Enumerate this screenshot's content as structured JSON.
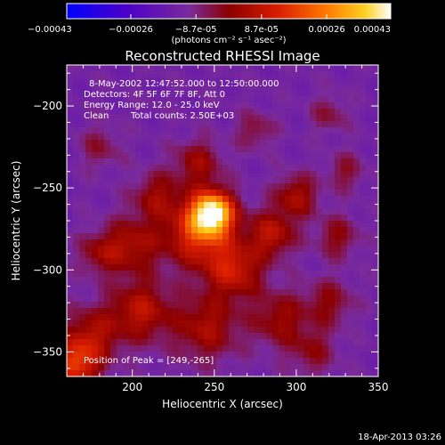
{
  "chart_data": {
    "type": "heatmap",
    "title": "Reconstructed RHESSI Image",
    "xlabel": "Heliocentric X (arcsec)",
    "ylabel": "Heliocentric Y (arcsec)",
    "xlim": [
      160,
      350
    ],
    "ylim": [
      -365,
      -175
    ],
    "xticks": [
      200,
      250,
      300,
      350
    ],
    "yticks": [
      -200,
      -250,
      -300,
      -350
    ],
    "colorbar": {
      "min": -0.00043,
      "max": 0.00043,
      "tick_values": [
        -0.00043,
        -0.00026,
        -8.7e-05,
        8.7e-05,
        0.00026,
        0.00043
      ],
      "tick_labels": [
        "-0.00043",
        "-0.00026",
        "-8.7e-05",
        "8.7e-05",
        "0.00026",
        "0.00043"
      ],
      "units_label": "(photons cm⁻² s⁻¹ asec⁻²)"
    },
    "annotations": {
      "time": "8-May-2002 12:47:52.000 to 12:50:00.000",
      "detectors": "Detectors: 4F 5F 6F 7F 8F, Att 0",
      "energy": "Energy Range: 12.0 - 25.0 keV",
      "clean": "Clean",
      "counts": "Total counts: 2.50E+03",
      "peak": "Position of Peak = [249,-265]"
    },
    "peak": [
      249,
      -265
    ],
    "sources": [
      {
        "x": 249,
        "y": -265,
        "amp": 1.0,
        "sigma": 9
      },
      {
        "x": 240,
        "y": -278,
        "amp": 0.55,
        "sigma": 14
      },
      {
        "x": 262,
        "y": -300,
        "amp": 0.45,
        "sigma": 12
      },
      {
        "x": 285,
        "y": -278,
        "amp": 0.4,
        "sigma": 10
      },
      {
        "x": 300,
        "y": -255,
        "amp": 0.35,
        "sigma": 9
      },
      {
        "x": 240,
        "y": -235,
        "amp": 0.3,
        "sigma": 10
      },
      {
        "x": 215,
        "y": -255,
        "amp": 0.3,
        "sigma": 10
      },
      {
        "x": 200,
        "y": -285,
        "amp": 0.35,
        "sigma": 12
      },
      {
        "x": 205,
        "y": -325,
        "amp": 0.4,
        "sigma": 13
      },
      {
        "x": 175,
        "y": -340,
        "amp": 0.35,
        "sigma": 12
      },
      {
        "x": 165,
        "y": -358,
        "amp": 0.55,
        "sigma": 10
      },
      {
        "x": 245,
        "y": -335,
        "amp": 0.35,
        "sigma": 14
      },
      {
        "x": 290,
        "y": -330,
        "amp": 0.3,
        "sigma": 12
      },
      {
        "x": 320,
        "y": -320,
        "amp": 0.25,
        "sigma": 10
      },
      {
        "x": 325,
        "y": -280,
        "amp": 0.25,
        "sigma": 9
      },
      {
        "x": 330,
        "y": -240,
        "amp": 0.2,
        "sigma": 8
      },
      {
        "x": 320,
        "y": -205,
        "amp": 0.18,
        "sigma": 8
      },
      {
        "x": 275,
        "y": -215,
        "amp": 0.2,
        "sigma": 8
      },
      {
        "x": 180,
        "y": -225,
        "amp": 0.18,
        "sigma": 9
      },
      {
        "x": 180,
        "y": -290,
        "amp": 0.25,
        "sigma": 9
      },
      {
        "x": 310,
        "y": -350,
        "amp": 0.22,
        "sigma": 10
      }
    ],
    "background_level": -0.12
  },
  "footer": {
    "timestamp": "18-Apr-2013 03:26"
  }
}
